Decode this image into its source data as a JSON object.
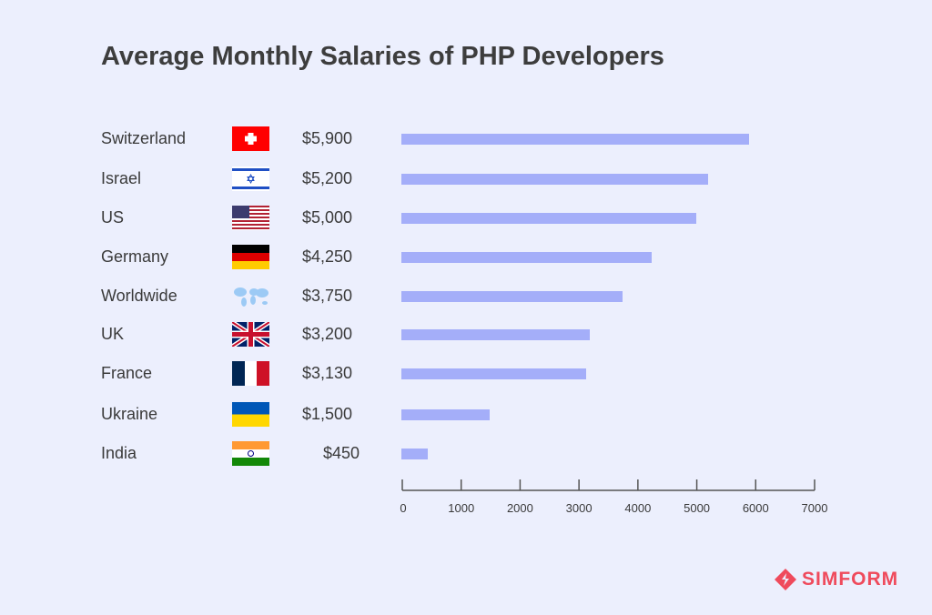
{
  "chart_data": {
    "type": "bar",
    "orientation": "horizontal",
    "title": "Average Monthly Salaries of PHP Developers",
    "categories": [
      "Switzerland",
      "Israel",
      "US",
      "Germany",
      "Worldwide",
      "UK",
      "France",
      "Ukraine",
      "India"
    ],
    "values": [
      5900,
      5200,
      5000,
      4250,
      3750,
      3200,
      3130,
      1500,
      450
    ],
    "value_labels": [
      "$5,900",
      "$5,200",
      "$5,000",
      "$4,250",
      "$3,750",
      "$3,200",
      "$3,130",
      "$1,500",
      "$450"
    ],
    "flags": [
      "switzerland-flag",
      "israel-flag",
      "us-flag",
      "germany-flag",
      "world-map",
      "uk-flag",
      "france-flag",
      "ukraine-flag",
      "india-flag"
    ],
    "xlim": [
      0,
      7000
    ],
    "xticks": [
      "0",
      "1000",
      "2000",
      "3000",
      "4000",
      "5000",
      "6000",
      "7000"
    ],
    "bar_color": "#a4aef9",
    "grid": false
  },
  "brand": "SIMFORM",
  "brand_color": "#ef4a5c"
}
